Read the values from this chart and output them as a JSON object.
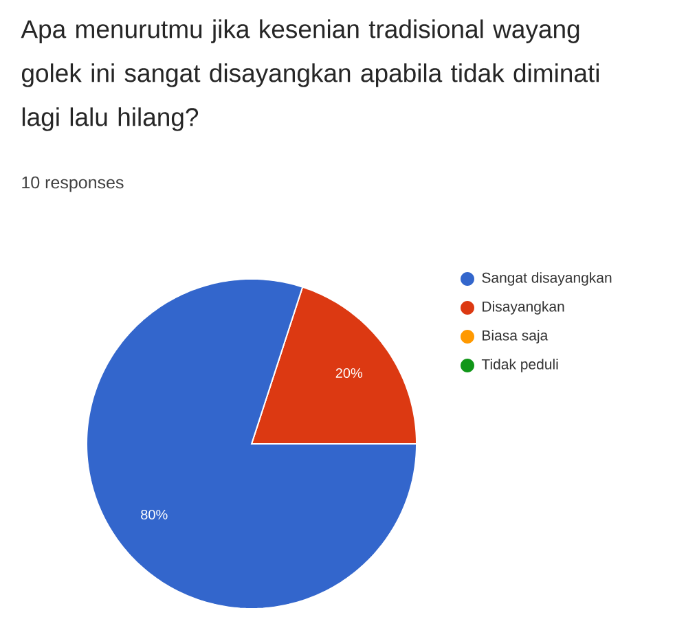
{
  "chart_data": {
    "type": "pie",
    "title": "Apa menurutmu jika kesenian tradisional wayang golek ini sangat disayangkan apabila tidak diminati lagi lalu hilang?",
    "subtitle": "10 responses",
    "categories": [
      "Sangat disayangkan",
      "Disayangkan",
      "Biasa saja",
      "Tidak peduli"
    ],
    "values": [
      80,
      20,
      0,
      0
    ],
    "colors": [
      "#3366cc",
      "#dc3912",
      "#ff9900",
      "#109618"
    ],
    "value_labels": [
      "80%",
      "20%",
      null,
      null
    ],
    "legend": "right"
  }
}
